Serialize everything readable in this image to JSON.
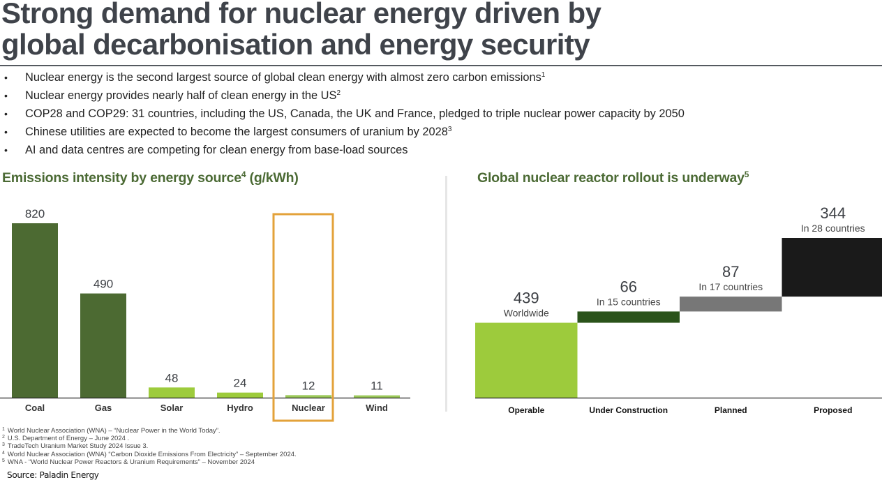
{
  "header": {
    "title_line1": "Strong demand for nuclear energy driven by",
    "title_line2": "global decarbonisation and energy security"
  },
  "bullets": [
    {
      "text": "Nuclear energy is the second largest source of global clean energy with almost zero carbon emissions",
      "ref": "1"
    },
    {
      "text": "Nuclear energy provides nearly half of clean energy in the US",
      "ref": "2"
    },
    {
      "text": "COP28 and COP29: 31 countries, including the US, Canada, the UK and France, pledged to triple nuclear power capacity by 2050",
      "ref": ""
    },
    {
      "text": "Chinese utilities are expected to become the largest consumers of uranium by 2028",
      "ref": "3"
    },
    {
      "text": "AI and data centres are competing for clean energy from base-load sources",
      "ref": ""
    }
  ],
  "bullet_glyph": "•",
  "colors": {
    "title": "#3f434a",
    "section_title": "#4b6a34",
    "dark_green": "#4c6a32",
    "light_green": "#9dcb3c",
    "nuclear_bar": "#9cc95a",
    "highlight": "#e3a23a",
    "forest_green": "#2a531a",
    "grey": "#777777",
    "black": "#1a1a1a"
  },
  "chart_data": [
    {
      "type": "bar",
      "title": "Emissions intensity by energy source",
      "title_ref": "4",
      "title_unit": "(g/kWh)",
      "xlabel": "",
      "ylabel": "g/kWh",
      "ylim": [
        0,
        820
      ],
      "grid": false,
      "categories": [
        "Coal",
        "Gas",
        "Solar",
        "Hydro",
        "Nuclear",
        "Wind"
      ],
      "values": [
        820,
        490,
        48,
        24,
        12,
        11
      ],
      "value_labels": [
        "820",
        "490",
        "48",
        "24",
        "12",
        "11"
      ],
      "highlighted_category": "Nuclear"
    },
    {
      "type": "waterfall",
      "title": "Global nuclear reactor rollout is underway",
      "title_ref": "5",
      "grid": false,
      "categories": [
        "Operable",
        "Under Construction",
        "Planned",
        "Proposed"
      ],
      "values": [
        439,
        66,
        87,
        344
      ],
      "value_labels": [
        "439",
        "66",
        "87",
        "344"
      ],
      "sublabels": [
        "Worldwide",
        "In 15 countries",
        "In 17 countries",
        "In 28 countries"
      ]
    }
  ],
  "footnotes": [
    {
      "num": "1",
      "text": "World Nuclear Association (WNA) – “Nuclear Power in the World Today”."
    },
    {
      "num": "2",
      "text": "U.S. Department of Energy – June 2024 ."
    },
    {
      "num": "3",
      "text": "TradeTech Uranium Market Study 2024 Issue 3."
    },
    {
      "num": "4",
      "text": "World Nuclear Association (WNA) “Carbon Dioxide Emissions From Electricity” – September 2024."
    },
    {
      "num": "5",
      "text": "WNA - “World Nuclear Power Reactors & Uranium Requirements” – November 2024"
    }
  ],
  "source": "Source: Paladin Energy"
}
